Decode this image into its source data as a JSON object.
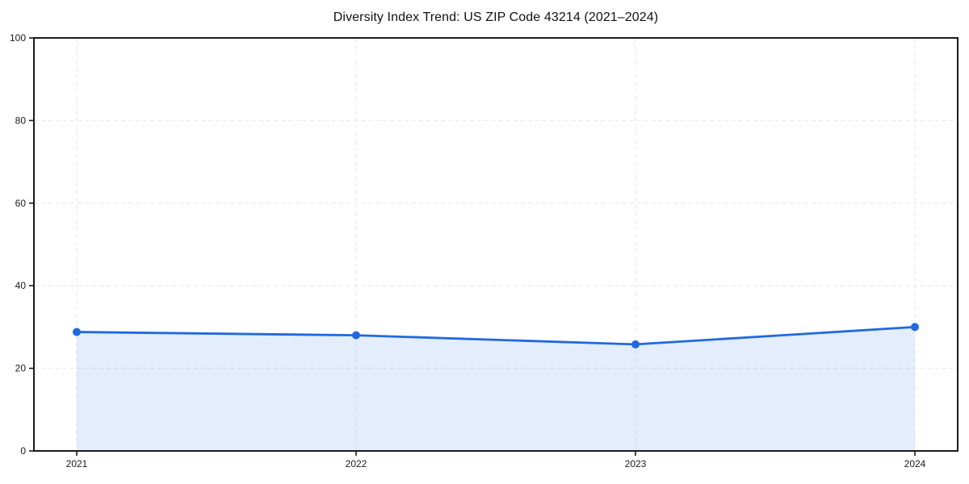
{
  "page": {
    "background": "#ffffff"
  },
  "chart_data": {
    "type": "area",
    "title": "Diversity Index Trend: US ZIP Code 43214 (2021–2024)",
    "categories": [
      "2021",
      "2022",
      "2023",
      "2024"
    ],
    "values": [
      28.8,
      28.0,
      25.8,
      30.0
    ],
    "xlabel": "",
    "ylabel": "",
    "ylim": [
      0,
      100
    ],
    "yticks": [
      0,
      20,
      40,
      60,
      80,
      100
    ],
    "grid": true,
    "grid_style": "dashed",
    "legend": "none",
    "marker": "circle",
    "colors": {
      "line": "#2069df",
      "marker": "#2069df",
      "area_fill": "rgba(32,105,223,0.12)",
      "grid": "#e6e6e6",
      "axis": "#1a1a1a",
      "tick_text": "#1a1a1a",
      "title_text": "#111111",
      "background": "#ffffff"
    }
  }
}
